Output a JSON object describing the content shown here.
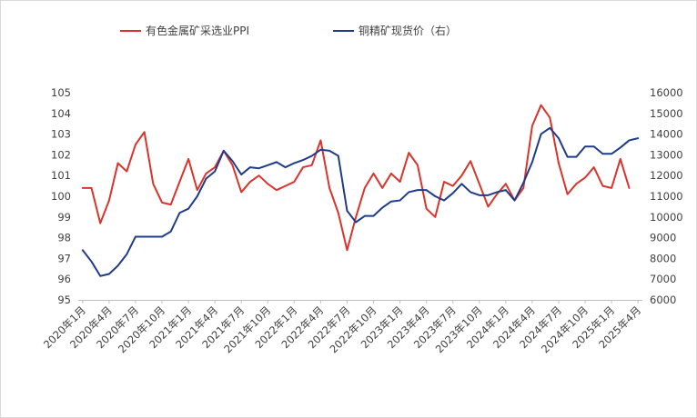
{
  "chart_data": {
    "type": "line",
    "title": "",
    "xlabel": "",
    "ylabel_left": "",
    "ylabel_right": "",
    "left_axis": {
      "ylim": [
        95,
        105
      ],
      "ticks": [
        95,
        96,
        97,
        98,
        99,
        100,
        101,
        102,
        103,
        104,
        105
      ]
    },
    "right_axis": {
      "ylim": [
        6000,
        16000
      ],
      "ticks": [
        6000,
        7000,
        8000,
        9000,
        10000,
        11000,
        12000,
        13000,
        14000,
        15000,
        16000
      ]
    },
    "grid": false,
    "legend_position": "top",
    "x_tick_labels": [
      "2020年1月",
      "2020年4月",
      "2020年7月",
      "2020年10月",
      "2021年1月",
      "2021年4月",
      "2021年7月",
      "2021年10月",
      "2022年1月",
      "2022年4月",
      "2022年7月",
      "2022年10月",
      "2023年1月",
      "2023年4月",
      "2023年7月",
      "2023年10月",
      "2024年1月",
      "2024年4月",
      "2024年7月",
      "2024年10月",
      "2025年1月",
      "2025年4月"
    ],
    "x": [
      "2020-01",
      "2020-02",
      "2020-03",
      "2020-04",
      "2020-05",
      "2020-06",
      "2020-07",
      "2020-08",
      "2020-09",
      "2020-10",
      "2020-11",
      "2020-12",
      "2021-01",
      "2021-02",
      "2021-03",
      "2021-04",
      "2021-05",
      "2021-06",
      "2021-07",
      "2021-08",
      "2021-09",
      "2021-10",
      "2021-11",
      "2021-12",
      "2022-01",
      "2022-02",
      "2022-03",
      "2022-04",
      "2022-05",
      "2022-06",
      "2022-07",
      "2022-08",
      "2022-09",
      "2022-10",
      "2022-11",
      "2022-12",
      "2023-01",
      "2023-02",
      "2023-03",
      "2023-04",
      "2023-05",
      "2023-06",
      "2023-07",
      "2023-08",
      "2023-09",
      "2023-10",
      "2023-11",
      "2023-12",
      "2024-01",
      "2024-02",
      "2024-03",
      "2024-04",
      "2024-05",
      "2024-06",
      "2024-07",
      "2024-08",
      "2024-09",
      "2024-10",
      "2024-11",
      "2024-12",
      "2025-01",
      "2025-02",
      "2025-03",
      "2025-04"
    ],
    "series": [
      {
        "name": "有色金属矿采选业PPI",
        "axis": "left",
        "color": "#d9332b",
        "values": [
          100.4,
          100.4,
          98.7,
          99.8,
          101.6,
          101.2,
          102.5,
          103.1,
          100.6,
          99.7,
          99.6,
          100.7,
          101.8,
          100.3,
          101.1,
          101.4,
          102.2,
          101.5,
          100.2,
          100.7,
          101.0,
          100.6,
          100.3,
          100.5,
          100.7,
          101.4,
          101.5,
          102.7,
          100.4,
          99.2,
          97.4,
          99.0,
          100.4,
          101.1,
          100.4,
          101.1,
          100.7,
          102.1,
          101.5,
          99.4,
          99.0,
          100.7,
          100.5,
          101.0,
          101.7,
          100.6,
          99.5,
          100.1,
          100.6,
          99.8,
          100.4,
          103.4,
          104.4,
          103.8,
          101.6,
          100.1,
          100.6,
          100.9,
          101.4,
          100.5,
          100.4,
          101.8,
          100.4,
          null
        ]
      },
      {
        "name": "铜精矿现货价（右）",
        "axis": "right",
        "color": "#1f3c88",
        "values": [
          8400,
          7850,
          7150,
          7250,
          7650,
          8200,
          9050,
          9050,
          9050,
          9050,
          9300,
          10200,
          10400,
          11000,
          11850,
          12200,
          13200,
          12700,
          12050,
          12400,
          12350,
          12500,
          12650,
          12400,
          12600,
          12750,
          12950,
          13250,
          13200,
          12950,
          10300,
          9750,
          10050,
          10050,
          10450,
          10750,
          10800,
          11200,
          11300,
          11300,
          11000,
          10800,
          11150,
          11600,
          11200,
          11050,
          11050,
          11200,
          11300,
          10800,
          11650,
          12650,
          14000,
          14300,
          13800,
          12900,
          12900,
          13400,
          13400,
          13050,
          13050,
          13350,
          13700,
          13800
        ]
      }
    ]
  }
}
